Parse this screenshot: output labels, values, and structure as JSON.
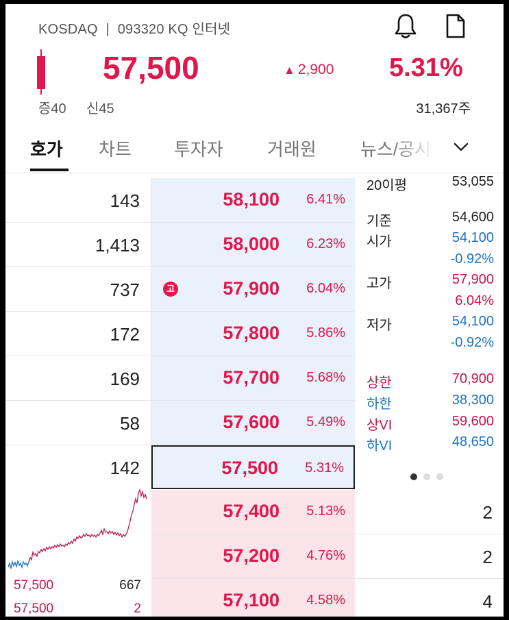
{
  "header": {
    "market": "KOSDAQ",
    "separator": "|",
    "code": "093320 KQ",
    "name": "인터넷",
    "bell_icon": "bell-icon",
    "doc_icon": "document-icon"
  },
  "quote": {
    "price": "57,500",
    "change": "2,900",
    "change_direction": "up",
    "rate": "5.31%",
    "margin_rate": "증40",
    "credit_rate": "신45",
    "volume": "31,367주",
    "up_color": "#e0174c",
    "down_color": "#1c72c7"
  },
  "tabs": [
    {
      "label": "호가",
      "active": true
    },
    {
      "label": "차트",
      "active": false
    },
    {
      "label": "투자자",
      "active": false
    },
    {
      "label": "거래원",
      "active": false
    },
    {
      "label": "뉴스/공시",
      "active": false
    }
  ],
  "orderbook": {
    "asks": [
      {
        "qty": "143",
        "price": "58,100",
        "rate": "6.41%"
      },
      {
        "qty": "1,413",
        "price": "58,000",
        "rate": "6.23%"
      },
      {
        "qty": "737",
        "price": "57,900",
        "rate": "6.04%",
        "badge": "고"
      },
      {
        "qty": "172",
        "price": "57,800",
        "rate": "5.86%"
      },
      {
        "qty": "169",
        "price": "57,700",
        "rate": "5.68%"
      },
      {
        "qty": "58",
        "price": "57,600",
        "rate": "5.49%"
      },
      {
        "qty": "142",
        "price": "57,500",
        "rate": "5.31%",
        "current": true
      }
    ],
    "bids": [
      {
        "qty": "2",
        "price": "57,400",
        "rate": "5.13%"
      },
      {
        "qty": "2",
        "price": "57,200",
        "rate": "4.76%"
      },
      {
        "qty": "4",
        "price": "57,100",
        "rate": "4.58%"
      }
    ]
  },
  "info": {
    "ma20_label": "20이평",
    "ma20_value": "53,055",
    "base_label": "기준",
    "base_value": "54,600",
    "open_label": "시가",
    "open_value": "54,100",
    "open_rate": "-0.92%",
    "high_label": "고가",
    "high_value": "57,900",
    "high_rate": "6.04%",
    "low_label": "저가",
    "low_value": "54,100",
    "low_rate": "-0.92%",
    "upper_limit_label": "상한",
    "upper_limit_value": "70,900",
    "lower_limit_label": "하한",
    "lower_limit_value": "38,300",
    "upper_vi_label": "상VI",
    "upper_vi_value": "59,600",
    "lower_vi_label": "하VI",
    "lower_vi_value": "48,650",
    "page_count": 3,
    "page_active": 1
  },
  "trades": [
    {
      "price": "57,500",
      "qty": "667"
    },
    {
      "price": "57,500",
      "qty": "2"
    }
  ]
}
